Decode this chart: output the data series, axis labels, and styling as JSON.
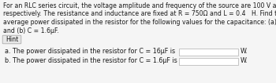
{
  "bg_color": "#f5f5f5",
  "white": "#ffffff",
  "black": "#1a1a1a",
  "dark_gray": "#444444",
  "gray": "#999999",
  "para_line1": "For an RLC series circuit, the voltage amplitude and frequency of the source are 100 V and 650 Hz,",
  "para_line2": "respectively. The resistance and inductance are fixed at R = 750Ω and L = 0.4   H. Find the",
  "para_line3": "average power dissipated in the resistor for the following values for the capacitance: (a) C = 16μF",
  "para_line4": "and (b) C = 1.6μF.",
  "hint_label": "Hint",
  "line_a": "a. The power dissipated in the resistor for C = 16μF is",
  "line_b": "b. The power dissipated in the resistor for C = 1.6μF is",
  "unit": "W.",
  "hint_box_color": "#e8e8e8",
  "hint_box_edge": "#aaaaaa",
  "input_box_color": "#ffffff",
  "input_box_edge": "#bbbbbb",
  "para_fontsize": 5.6,
  "hint_fontsize": 5.8,
  "row_fontsize": 5.8
}
